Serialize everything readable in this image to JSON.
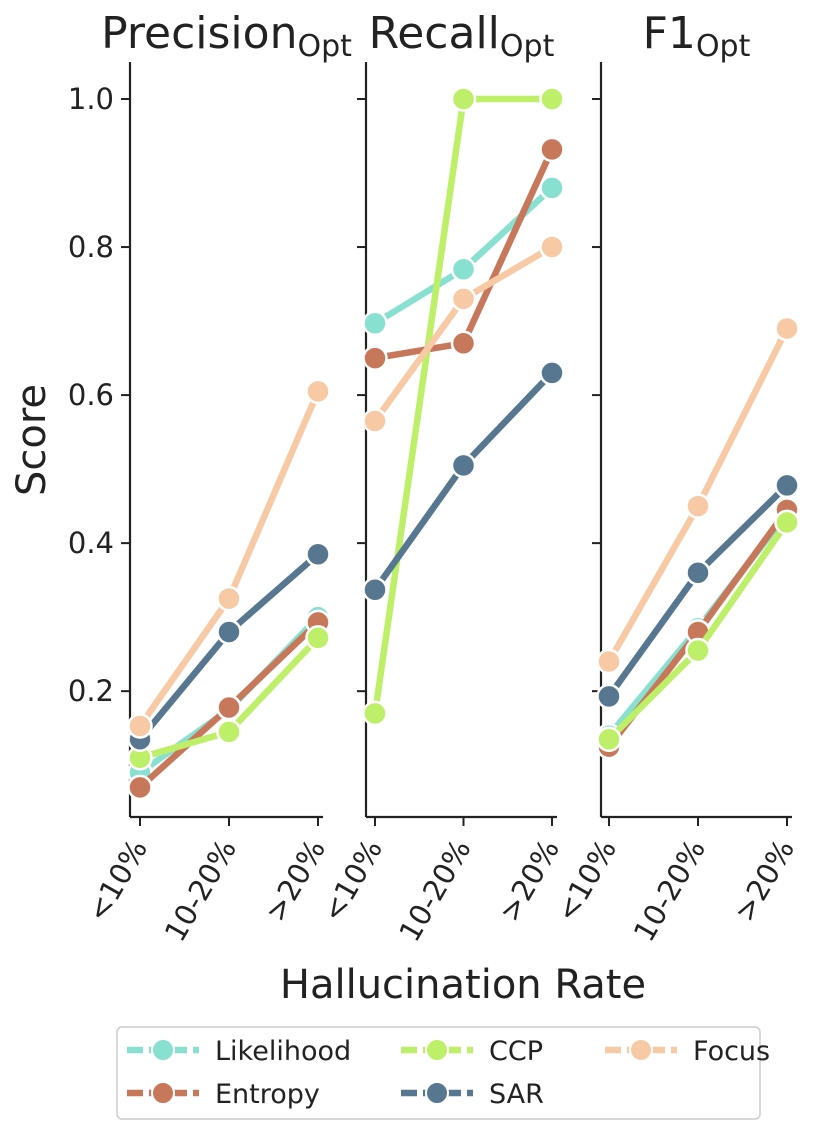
{
  "chart_data": {
    "type": "line",
    "ylabel": "Score",
    "xlabel": "Hallucination Rate",
    "categories": [
      "<10%",
      "10-20%",
      ">20%"
    ],
    "ylim": [
      0.03,
      1.05
    ],
    "yticks": [
      0.2,
      0.4,
      0.6,
      0.8,
      1.0
    ],
    "ytick_labels": [
      "0.2",
      "0.4",
      "0.6",
      "0.8",
      "1.0"
    ],
    "colors": {
      "Likelihood": "#88e0d0",
      "Entropy": "#c8785a",
      "CCP": "#bdef68",
      "SAR": "#56778f",
      "Focus": "#f7c9a4"
    },
    "legend": [
      "Likelihood",
      "Entropy",
      "CCP",
      "SAR",
      "Focus"
    ],
    "panels": [
      {
        "title": "Precision",
        "title_sub": "Opt",
        "series": [
          {
            "name": "Likelihood",
            "values": [
              0.09,
              0.175,
              0.3
            ]
          },
          {
            "name": "Entropy",
            "values": [
              0.07,
              0.178,
              0.293
            ]
          },
          {
            "name": "CCP",
            "values": [
              0.11,
              0.145,
              0.272
            ]
          },
          {
            "name": "SAR",
            "values": [
              0.135,
              0.28,
              0.385
            ]
          },
          {
            "name": "Focus",
            "values": [
              0.153,
              0.325,
              0.605
            ]
          }
        ]
      },
      {
        "title": "Recall",
        "title_sub": "Opt",
        "series": [
          {
            "name": "Likelihood",
            "values": [
              0.697,
              0.77,
              0.88
            ]
          },
          {
            "name": "Entropy",
            "values": [
              0.65,
              0.67,
              0.932
            ]
          },
          {
            "name": "CCP",
            "values": [
              0.17,
              1.0,
              1.0
            ]
          },
          {
            "name": "SAR",
            "values": [
              0.337,
              0.505,
              0.63
            ]
          },
          {
            "name": "Focus",
            "values": [
              0.565,
              0.73,
              0.8
            ]
          }
        ]
      },
      {
        "title": "F1",
        "title_sub": "Opt",
        "series": [
          {
            "name": "Likelihood",
            "values": [
              0.14,
              0.285,
              0.44
            ]
          },
          {
            "name": "Entropy",
            "values": [
              0.125,
              0.28,
              0.445
            ]
          },
          {
            "name": "CCP",
            "values": [
              0.135,
              0.255,
              0.428
            ]
          },
          {
            "name": "SAR",
            "values": [
              0.193,
              0.36,
              0.478
            ]
          },
          {
            "name": "Focus",
            "values": [
              0.24,
              0.45,
              0.69
            ]
          }
        ]
      }
    ]
  }
}
